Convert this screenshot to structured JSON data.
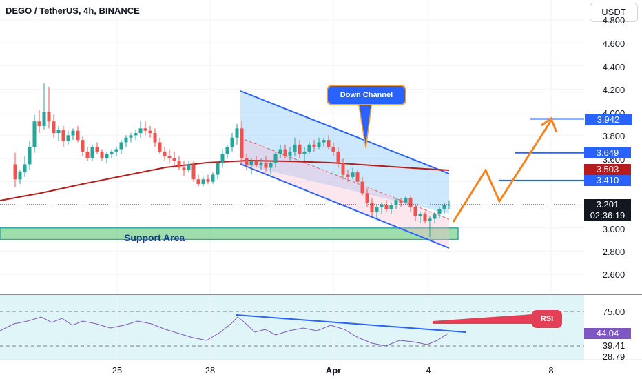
{
  "header": {
    "symbol_title": "DEGO / TetherUS, 4h, BINANCE",
    "currency_button": "USDT"
  },
  "price_axis": {
    "ticks": [
      "4.800",
      "4.600",
      "4.400",
      "4.200",
      "4.000",
      "3.800",
      "3.600",
      "3.400",
      "3.000",
      "2.800",
      "2.600"
    ],
    "badges": {
      "level_1": "3.942",
      "level_2": "3.649",
      "level_3": "3.503",
      "level_4": "3.410",
      "current_price": "3.201",
      "countdown": "02:36:19"
    }
  },
  "rsi_axis": {
    "ticks": [
      "75.00",
      "44.04",
      "39.41",
      "28.79"
    ]
  },
  "time_axis": {
    "labels": [
      "25",
      "28",
      "Apr",
      "4",
      "8"
    ]
  },
  "annotations": {
    "support_area": "Support Area",
    "down_channel": "Down Channel",
    "rsi_label": "RSI"
  },
  "colors": {
    "bull": "#26a69a",
    "bear": "#ef5350",
    "ma": "#b71c1c",
    "channel": "#2962ff",
    "projection": "#f5841f",
    "support": "#7ed190",
    "rsi_line": "#7e57c2"
  },
  "chart_data": {
    "type": "candlestick",
    "title": "DEGO / TetherUS, 4h, BINANCE",
    "y_range": [
      2.45,
      4.85
    ],
    "rsi_range": [
      20,
      85
    ],
    "current_price": 3.201,
    "moving_average_level_at_right": 3.503,
    "target_levels": [
      3.942,
      3.649,
      3.41
    ],
    "support_zone": [
      2.9,
      3.0
    ],
    "series": [
      {
        "name": "DEGO/USDT",
        "x": [
          22,
          29,
          36,
          43,
          50,
          57,
          64,
          71,
          78,
          85,
          92,
          99,
          106,
          113,
          120,
          127,
          134,
          141,
          148,
          155,
          162,
          169,
          176,
          183,
          190,
          197,
          204,
          211,
          218,
          225,
          232,
          239,
          246,
          253,
          260,
          267,
          274,
          281,
          288,
          295,
          302,
          309,
          316,
          323,
          330,
          337,
          344,
          351,
          358,
          365,
          372,
          379,
          386,
          393,
          400,
          407,
          414,
          421,
          428,
          435,
          442,
          449,
          456,
          463,
          470,
          477,
          484,
          491,
          498,
          505,
          512,
          519,
          526,
          533,
          540,
          547,
          554,
          561,
          568,
          575,
          582,
          589,
          596,
          603,
          610,
          617,
          624,
          631,
          638,
          645,
          652
        ],
        "ohlc": [
          [
            3.55,
            3.65,
            3.35,
            3.42
          ],
          [
            3.42,
            3.5,
            3.38,
            3.48
          ],
          [
            3.48,
            3.62,
            3.44,
            3.55
          ],
          [
            3.55,
            3.75,
            3.5,
            3.7
          ],
          [
            3.7,
            3.98,
            3.65,
            3.92
          ],
          [
            3.92,
            4.02,
            3.82,
            3.88
          ],
          [
            3.88,
            4.25,
            3.85,
            4.0
          ],
          [
            4.0,
            4.22,
            3.86,
            3.92
          ],
          [
            3.92,
            3.98,
            3.78,
            3.82
          ],
          [
            3.82,
            3.88,
            3.75,
            3.85
          ],
          [
            3.85,
            3.88,
            3.7,
            3.75
          ],
          [
            3.75,
            3.84,
            3.72,
            3.8
          ],
          [
            3.8,
            3.86,
            3.76,
            3.84
          ],
          [
            3.84,
            3.88,
            3.74,
            3.76
          ],
          [
            3.76,
            3.79,
            3.62,
            3.66
          ],
          [
            3.66,
            3.7,
            3.58,
            3.6
          ],
          [
            3.6,
            3.72,
            3.58,
            3.7
          ],
          [
            3.7,
            3.74,
            3.64,
            3.66
          ],
          [
            3.66,
            3.68,
            3.58,
            3.6
          ],
          [
            3.6,
            3.66,
            3.56,
            3.64
          ],
          [
            3.64,
            3.68,
            3.6,
            3.66
          ],
          [
            3.66,
            3.7,
            3.62,
            3.68
          ],
          [
            3.68,
            3.76,
            3.64,
            3.74
          ],
          [
            3.74,
            3.8,
            3.7,
            3.78
          ],
          [
            3.78,
            3.82,
            3.74,
            3.8
          ],
          [
            3.8,
            3.85,
            3.76,
            3.82
          ],
          [
            3.82,
            3.92,
            3.78,
            3.86
          ],
          [
            3.86,
            3.92,
            3.8,
            3.84
          ],
          [
            3.84,
            3.88,
            3.78,
            3.82
          ],
          [
            3.82,
            3.86,
            3.7,
            3.74
          ],
          [
            3.74,
            3.78,
            3.64,
            3.66
          ],
          [
            3.66,
            3.7,
            3.58,
            3.62
          ],
          [
            3.62,
            3.68,
            3.56,
            3.6
          ],
          [
            3.6,
            3.66,
            3.52,
            3.58
          ],
          [
            3.58,
            3.62,
            3.5,
            3.52
          ],
          [
            3.52,
            3.58,
            3.45,
            3.5
          ],
          [
            3.5,
            3.58,
            3.48,
            3.55
          ],
          [
            3.55,
            3.58,
            3.4,
            3.42
          ],
          [
            3.42,
            3.46,
            3.36,
            3.38
          ],
          [
            3.38,
            3.44,
            3.36,
            3.42
          ],
          [
            3.42,
            3.46,
            3.38,
            3.4
          ],
          [
            3.4,
            3.48,
            3.38,
            3.46
          ],
          [
            3.46,
            3.58,
            3.42,
            3.56
          ],
          [
            3.56,
            3.68,
            3.52,
            3.64
          ],
          [
            3.64,
            3.72,
            3.6,
            3.7
          ],
          [
            3.7,
            3.82,
            3.66,
            3.78
          ],
          [
            3.78,
            3.9,
            3.72,
            3.86
          ],
          [
            3.86,
            3.92,
            3.55,
            3.6
          ],
          [
            3.6,
            3.64,
            3.5,
            3.54
          ],
          [
            3.54,
            3.6,
            3.46,
            3.58
          ],
          [
            3.58,
            3.62,
            3.52,
            3.54
          ],
          [
            3.54,
            3.6,
            3.5,
            3.56
          ],
          [
            3.56,
            3.62,
            3.48,
            3.52
          ],
          [
            3.52,
            3.58,
            3.46,
            3.56
          ],
          [
            3.56,
            3.66,
            3.52,
            3.64
          ],
          [
            3.64,
            3.72,
            3.6,
            3.68
          ],
          [
            3.68,
            3.72,
            3.6,
            3.62
          ],
          [
            3.62,
            3.7,
            3.58,
            3.66
          ],
          [
            3.66,
            3.78,
            3.62,
            3.72
          ],
          [
            3.72,
            3.76,
            3.6,
            3.64
          ],
          [
            3.64,
            3.7,
            3.58,
            3.66
          ],
          [
            3.66,
            3.74,
            3.64,
            3.72
          ],
          [
            3.72,
            3.76,
            3.66,
            3.7
          ],
          [
            3.7,
            3.78,
            3.68,
            3.74
          ],
          [
            3.74,
            3.78,
            3.7,
            3.76
          ],
          [
            3.76,
            3.8,
            3.68,
            3.7
          ],
          [
            3.7,
            3.74,
            3.62,
            3.66
          ],
          [
            3.66,
            3.7,
            3.52,
            3.56
          ],
          [
            3.56,
            3.6,
            3.42,
            3.46
          ],
          [
            3.46,
            3.5,
            3.4,
            3.44
          ],
          [
            3.44,
            3.52,
            3.42,
            3.48
          ],
          [
            3.48,
            3.5,
            3.38,
            3.4
          ],
          [
            3.4,
            3.44,
            3.28,
            3.3
          ],
          [
            3.3,
            3.34,
            3.18,
            3.22
          ],
          [
            3.22,
            3.26,
            3.1,
            3.14
          ],
          [
            3.14,
            3.2,
            3.08,
            3.18
          ],
          [
            3.18,
            3.22,
            3.12,
            3.2
          ],
          [
            3.2,
            3.24,
            3.14,
            3.16
          ],
          [
            3.16,
            3.22,
            3.12,
            3.2
          ],
          [
            3.2,
            3.26,
            3.16,
            3.24
          ],
          [
            3.24,
            3.26,
            3.18,
            3.22
          ],
          [
            3.22,
            3.28,
            3.2,
            3.26
          ],
          [
            3.26,
            3.28,
            3.14,
            3.18
          ],
          [
            3.18,
            3.2,
            3.06,
            3.1
          ],
          [
            3.1,
            3.14,
            3.04,
            3.12
          ],
          [
            3.12,
            3.14,
            3.04,
            3.06
          ],
          [
            3.06,
            3.1,
            2.92,
            3.08
          ],
          [
            3.08,
            3.14,
            3.04,
            3.12
          ],
          [
            3.12,
            3.18,
            3.08,
            3.16
          ],
          [
            3.16,
            3.22,
            3.12,
            3.2
          ],
          [
            3.2,
            3.24,
            3.16,
            3.2
          ]
        ]
      }
    ],
    "rsi": {
      "name": "RSI",
      "upper": 75.0,
      "lower": 39.41,
      "current": 44.04,
      "min_label": 28.79
    }
  }
}
